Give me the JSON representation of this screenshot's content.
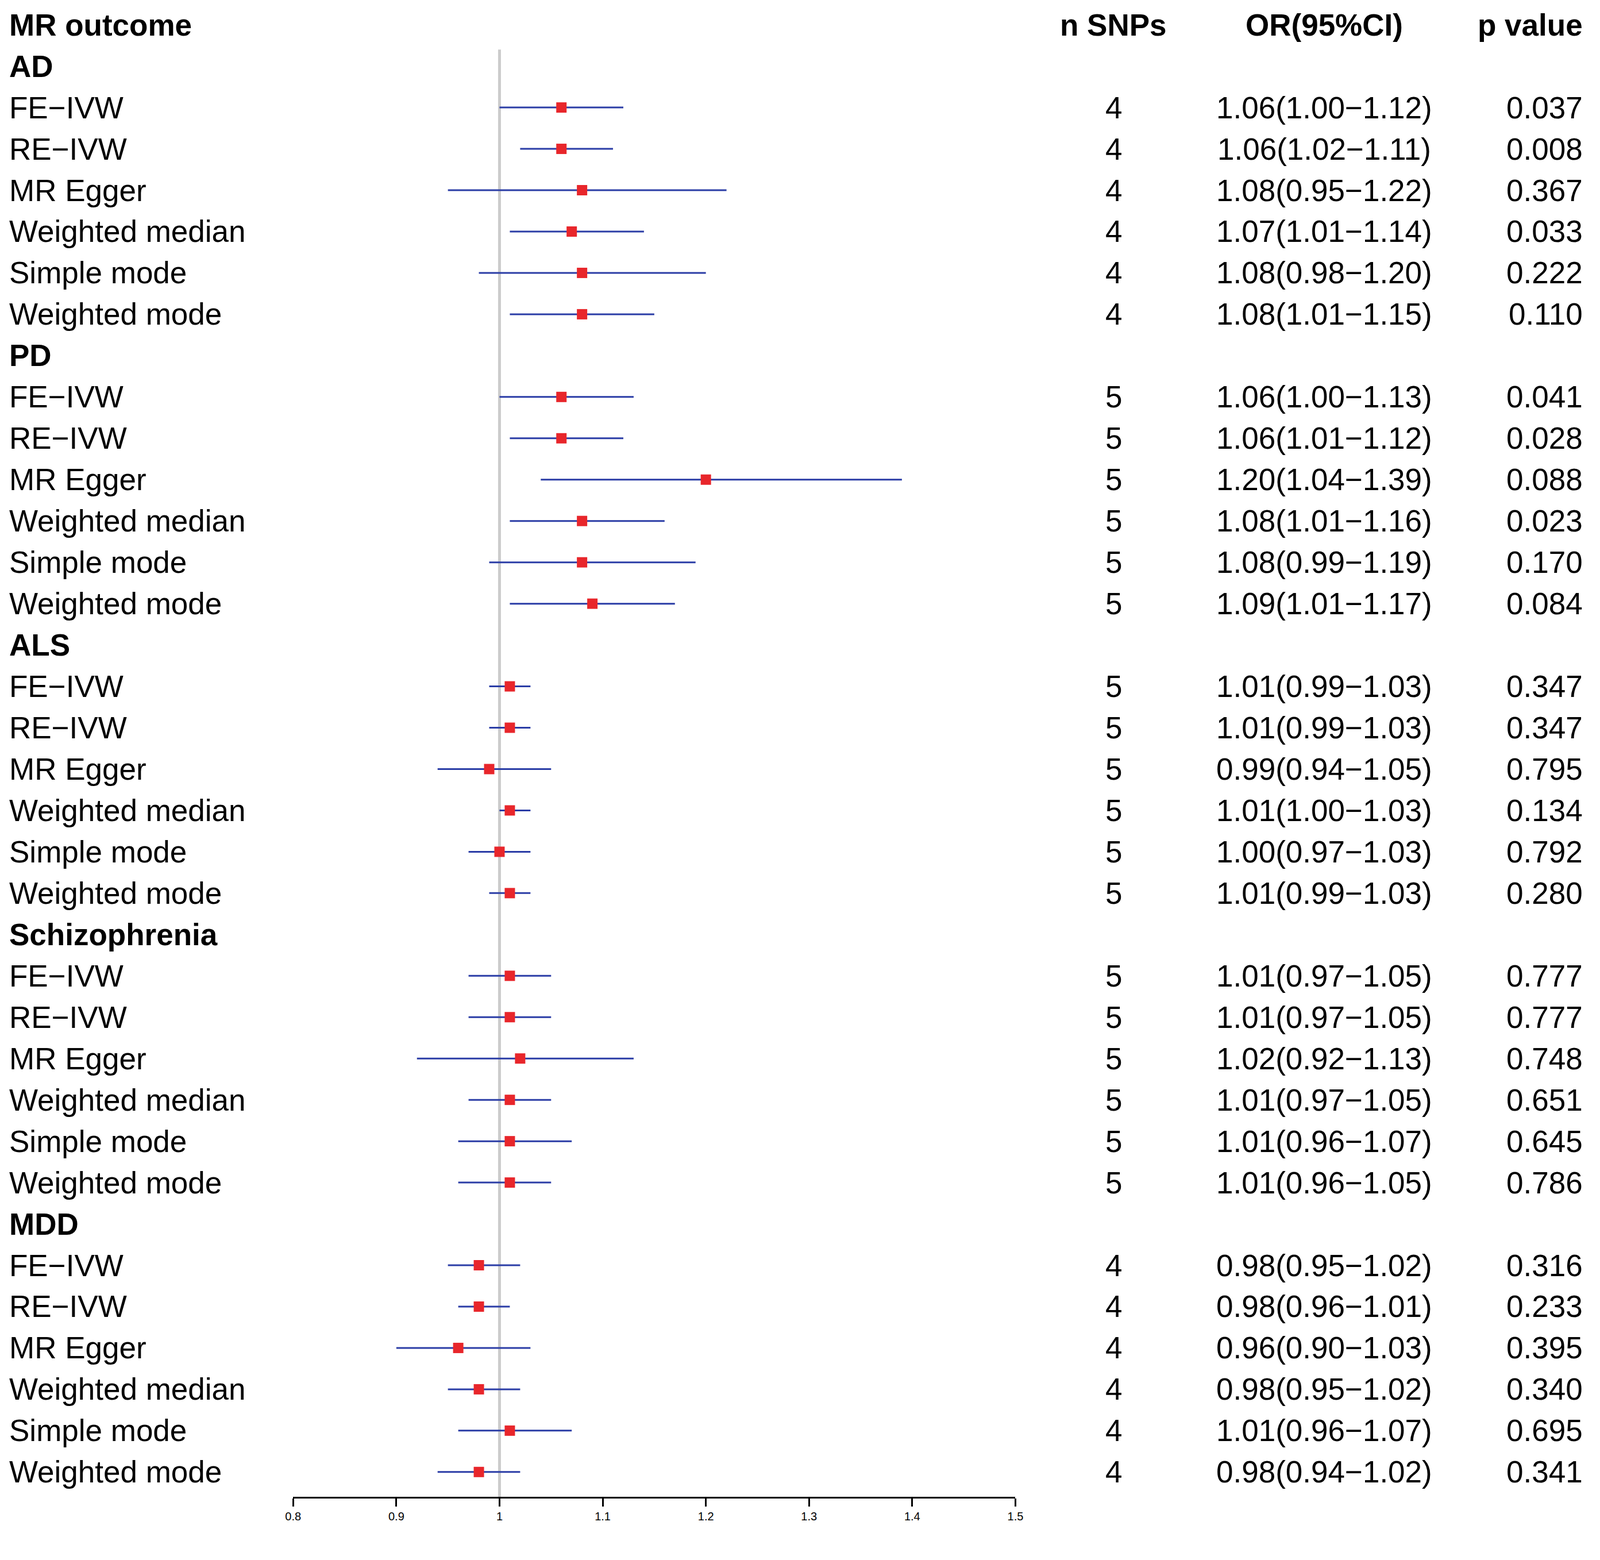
{
  "chart_data": {
    "type": "forest",
    "columns": [
      "MR outcome",
      "n SNPs",
      "OR(95%CI)",
      "p value"
    ],
    "xlim": [
      0.8,
      1.5
    ],
    "xticks": [
      0.8,
      0.9,
      1,
      1.1,
      1.2,
      1.3,
      1.4,
      1.5
    ],
    "reference": 1,
    "color": "#e8262b",
    "marker": "square",
    "groups": [
      {
        "name": "AD",
        "rows": [
          {
            "method": "FE−IVW",
            "n_snps": 4,
            "or": 1.06,
            "lower": 1.0,
            "upper": 1.12,
            "or_label": "1.06(1.00−1.12)",
            "p_value": "0.037"
          },
          {
            "method": "RE−IVW",
            "n_snps": 4,
            "or": 1.06,
            "lower": 1.02,
            "upper": 1.11,
            "or_label": "1.06(1.02−1.11)",
            "p_value": "0.008"
          },
          {
            "method": "MR Egger",
            "n_snps": 4,
            "or": 1.08,
            "lower": 0.95,
            "upper": 1.22,
            "or_label": "1.08(0.95−1.22)",
            "p_value": "0.367"
          },
          {
            "method": "Weighted median",
            "n_snps": 4,
            "or": 1.07,
            "lower": 1.01,
            "upper": 1.14,
            "or_label": "1.07(1.01−1.14)",
            "p_value": "0.033"
          },
          {
            "method": "Simple mode",
            "n_snps": 4,
            "or": 1.08,
            "lower": 0.98,
            "upper": 1.2,
            "or_label": "1.08(0.98−1.20)",
            "p_value": "0.222"
          },
          {
            "method": "Weighted mode",
            "n_snps": 4,
            "or": 1.08,
            "lower": 1.01,
            "upper": 1.15,
            "or_label": "1.08(1.01−1.15)",
            "p_value": "0.110"
          }
        ]
      },
      {
        "name": "PD",
        "rows": [
          {
            "method": "FE−IVW",
            "n_snps": 5,
            "or": 1.06,
            "lower": 1.0,
            "upper": 1.13,
            "or_label": "1.06(1.00−1.13)",
            "p_value": "0.041"
          },
          {
            "method": "RE−IVW",
            "n_snps": 5,
            "or": 1.06,
            "lower": 1.01,
            "upper": 1.12,
            "or_label": "1.06(1.01−1.12)",
            "p_value": "0.028"
          },
          {
            "method": "MR Egger",
            "n_snps": 5,
            "or": 1.2,
            "lower": 1.04,
            "upper": 1.39,
            "or_label": "1.20(1.04−1.39)",
            "p_value": "0.088"
          },
          {
            "method": "Weighted median",
            "n_snps": 5,
            "or": 1.08,
            "lower": 1.01,
            "upper": 1.16,
            "or_label": "1.08(1.01−1.16)",
            "p_value": "0.023"
          },
          {
            "method": "Simple mode",
            "n_snps": 5,
            "or": 1.08,
            "lower": 0.99,
            "upper": 1.19,
            "or_label": "1.08(0.99−1.19)",
            "p_value": "0.170"
          },
          {
            "method": "Weighted mode",
            "n_snps": 5,
            "or": 1.09,
            "lower": 1.01,
            "upper": 1.17,
            "or_label": "1.09(1.01−1.17)",
            "p_value": "0.084"
          }
        ]
      },
      {
        "name": "ALS",
        "rows": [
          {
            "method": "FE−IVW",
            "n_snps": 5,
            "or": 1.01,
            "lower": 0.99,
            "upper": 1.03,
            "or_label": "1.01(0.99−1.03)",
            "p_value": "0.347"
          },
          {
            "method": "RE−IVW",
            "n_snps": 5,
            "or": 1.01,
            "lower": 0.99,
            "upper": 1.03,
            "or_label": "1.01(0.99−1.03)",
            "p_value": "0.347"
          },
          {
            "method": "MR Egger",
            "n_snps": 5,
            "or": 0.99,
            "lower": 0.94,
            "upper": 1.05,
            "or_label": "0.99(0.94−1.05)",
            "p_value": "0.795"
          },
          {
            "method": "Weighted median",
            "n_snps": 5,
            "or": 1.01,
            "lower": 1.0,
            "upper": 1.03,
            "or_label": "1.01(1.00−1.03)",
            "p_value": "0.134"
          },
          {
            "method": "Simple mode",
            "n_snps": 5,
            "or": 1.0,
            "lower": 0.97,
            "upper": 1.03,
            "or_label": "1.00(0.97−1.03)",
            "p_value": "0.792"
          },
          {
            "method": "Weighted mode",
            "n_snps": 5,
            "or": 1.01,
            "lower": 0.99,
            "upper": 1.03,
            "or_label": "1.01(0.99−1.03)",
            "p_value": "0.280"
          }
        ]
      },
      {
        "name": "Schizophrenia",
        "rows": [
          {
            "method": "FE−IVW",
            "n_snps": 5,
            "or": 1.01,
            "lower": 0.97,
            "upper": 1.05,
            "or_label": "1.01(0.97−1.05)",
            "p_value": "0.777"
          },
          {
            "method": "RE−IVW",
            "n_snps": 5,
            "or": 1.01,
            "lower": 0.97,
            "upper": 1.05,
            "or_label": "1.01(0.97−1.05)",
            "p_value": "0.777"
          },
          {
            "method": "MR Egger",
            "n_snps": 5,
            "or": 1.02,
            "lower": 0.92,
            "upper": 1.13,
            "or_label": "1.02(0.92−1.13)",
            "p_value": "0.748"
          },
          {
            "method": "Weighted median",
            "n_snps": 5,
            "or": 1.01,
            "lower": 0.97,
            "upper": 1.05,
            "or_label": "1.01(0.97−1.05)",
            "p_value": "0.651"
          },
          {
            "method": "Simple mode",
            "n_snps": 5,
            "or": 1.01,
            "lower": 0.96,
            "upper": 1.07,
            "or_label": "1.01(0.96−1.07)",
            "p_value": "0.645"
          },
          {
            "method": "Weighted mode",
            "n_snps": 5,
            "or": 1.01,
            "lower": 0.96,
            "upper": 1.05,
            "or_label": "1.01(0.96−1.05)",
            "p_value": "0.786"
          }
        ]
      },
      {
        "name": "MDD",
        "rows": [
          {
            "method": "FE−IVW",
            "n_snps": 4,
            "or": 0.98,
            "lower": 0.95,
            "upper": 1.02,
            "or_label": "0.98(0.95−1.02)",
            "p_value": "0.316"
          },
          {
            "method": "RE−IVW",
            "n_snps": 4,
            "or": 0.98,
            "lower": 0.96,
            "upper": 1.01,
            "or_label": "0.98(0.96−1.01)",
            "p_value": "0.233"
          },
          {
            "method": "MR Egger",
            "n_snps": 4,
            "or": 0.96,
            "lower": 0.9,
            "upper": 1.03,
            "or_label": "0.96(0.90−1.03)",
            "p_value": "0.395"
          },
          {
            "method": "Weighted median",
            "n_snps": 4,
            "or": 0.98,
            "lower": 0.95,
            "upper": 1.02,
            "or_label": "0.98(0.95−1.02)",
            "p_value": "0.340"
          },
          {
            "method": "Simple mode",
            "n_snps": 4,
            "or": 1.01,
            "lower": 0.96,
            "upper": 1.07,
            "or_label": "1.01(0.96−1.07)",
            "p_value": "0.695"
          },
          {
            "method": "Weighted mode",
            "n_snps": 4,
            "or": 0.98,
            "lower": 0.94,
            "upper": 1.02,
            "or_label": "0.98(0.94−1.02)",
            "p_value": "0.341"
          }
        ]
      }
    ]
  }
}
